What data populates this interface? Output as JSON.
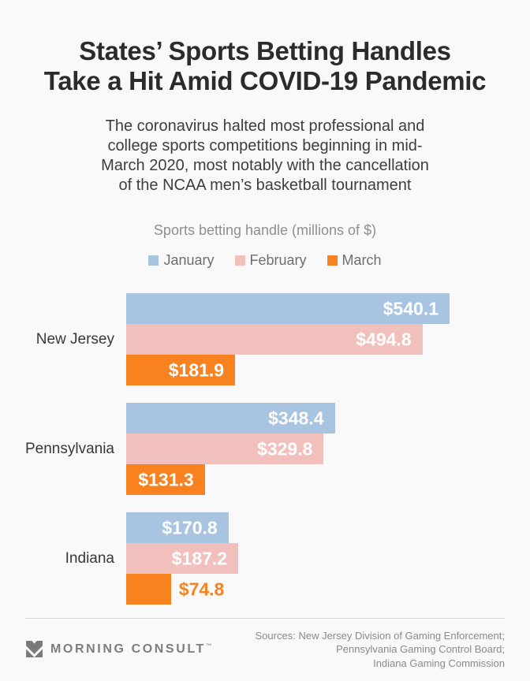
{
  "title": {
    "lines": [
      "States’ Sports Betting Handles",
      "Take a Hit Amid COVID-19 Pandemic"
    ]
  },
  "subtitle": {
    "lines": [
      "The coronavirus halted most professional and",
      "college sports competitions beginning in mid-",
      "March 2020, most notably with the cancellation",
      "of the NCAA men’s basketball tournament"
    ]
  },
  "chart_data": {
    "type": "bar",
    "orientation": "horizontal",
    "title": "Sports betting handle (millions of $)",
    "categories": [
      "New Jersey",
      "Pennsylvania",
      "Indiana"
    ],
    "series": [
      {
        "name": "January",
        "color": "#a9c4e0",
        "values": [
          540.1,
          348.4,
          170.8
        ]
      },
      {
        "name": "February",
        "color": "#f2c0bc",
        "values": [
          494.8,
          329.8,
          187.2
        ]
      },
      {
        "name": "March",
        "color": "#f8821f",
        "values": [
          181.9,
          131.3,
          74.8
        ]
      }
    ],
    "value_prefix": "$",
    "xlim": [
      0,
      540.1
    ],
    "legend_position": "top",
    "grid": false,
    "value_labels": {
      "inside_color": "#ffffff",
      "outside_color": "#f8821f"
    }
  },
  "footer": {
    "logo_text": "MORNING CONSULT",
    "logo_trademark": "™",
    "sources_lines": [
      "Sources: New Jersey Division of Gaming Enforcement;",
      "Pennsylvania Gaming Control Board;",
      "Indiana Gaming Commission"
    ]
  },
  "colors": {
    "background": "#f9f9f9",
    "title_text": "#2b2b2b",
    "muted_text": "#8f8f8f",
    "january": "#a9c4e0",
    "february": "#f2c0bc",
    "march": "#f8821f"
  }
}
